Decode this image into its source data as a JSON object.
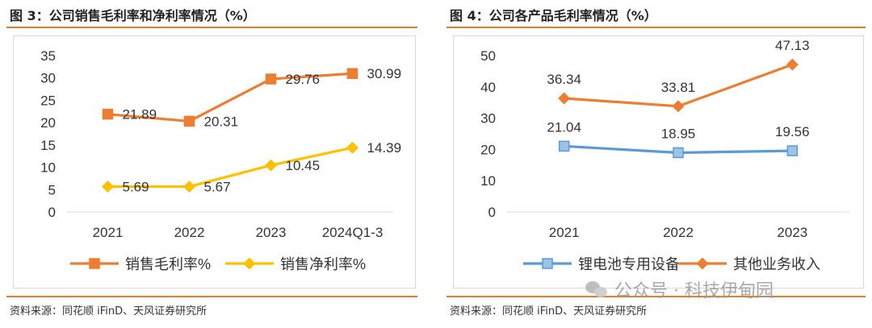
{
  "colors": {
    "accent": "#f07c21",
    "orange": "#ed7d31",
    "yellow": "#ffc000",
    "blue": "#5b9bd5",
    "blue_marker": "#9dc3e6",
    "text": "#333333",
    "axis": "#d9d9d9"
  },
  "left": {
    "title": "图 3：公司销售毛利率和净利率情况（%）",
    "source": "资料来源：同花顺 iFinD、天风证券研究所"
  },
  "right": {
    "title": "图 4：公司各产品毛利率情况（%）",
    "source": "资料来源：同花顺 iFinD、天风证券研究所"
  },
  "watermark": {
    "text": "公众号 · 科技伊甸园",
    "icon": "wechat-icon"
  },
  "chart_data": [
    {
      "type": "line",
      "title": "",
      "xlabel": "",
      "ylabel": "",
      "categories": [
        "2021",
        "2022",
        "2023",
        "2024Q1-3"
      ],
      "ylim": [
        0,
        35
      ],
      "yticks": [
        0,
        5,
        10,
        15,
        20,
        25,
        30,
        35
      ],
      "grid": false,
      "legend_position": "bottom",
      "series": [
        {
          "name": "销售毛利率%",
          "values": [
            21.89,
            20.31,
            29.76,
            30.99
          ],
          "labels": [
            "21.89",
            "20.31",
            "29.76",
            "30.99"
          ],
          "color": "#ed7d31",
          "marker": "square"
        },
        {
          "name": "销售净利率%",
          "values": [
            5.69,
            5.67,
            10.45,
            14.39
          ],
          "labels": [
            "5.69",
            "5.67",
            "10.45",
            "14.39"
          ],
          "color": "#ffc000",
          "marker": "diamond"
        }
      ]
    },
    {
      "type": "line",
      "title": "",
      "xlabel": "",
      "ylabel": "",
      "categories": [
        "2021",
        "2022",
        "2023"
      ],
      "ylim": [
        0,
        50
      ],
      "yticks": [
        0,
        10,
        20,
        30,
        40,
        50
      ],
      "grid": false,
      "legend_position": "bottom",
      "series": [
        {
          "name": "锂电池专用设备",
          "values": [
            21.04,
            18.95,
            19.56
          ],
          "labels": [
            "21.04",
            "18.95",
            "19.56"
          ],
          "color": "#5b9bd5",
          "marker": "square"
        },
        {
          "name": "其他业务收入",
          "values": [
            36.34,
            33.81,
            47.13
          ],
          "labels": [
            "36.34",
            "33.81",
            "47.13"
          ],
          "color": "#ed7d31",
          "marker": "diamond"
        }
      ]
    }
  ]
}
